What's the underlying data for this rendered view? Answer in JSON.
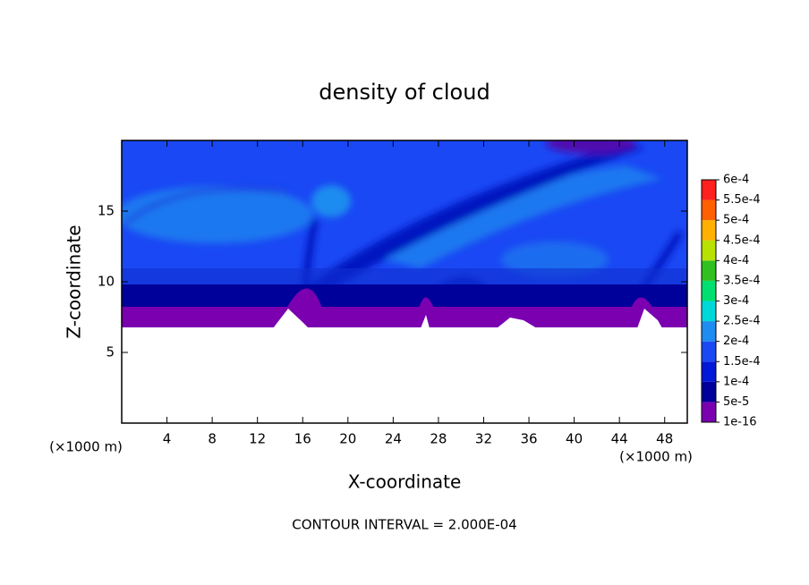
{
  "chart_data": {
    "type": "contour",
    "title": "density of cloud",
    "xlabel": "X-coordinate",
    "ylabel": "Z-coordinate",
    "y_unit": "(×1000 m)",
    "x_unit": "(×1000 m)",
    "annotation": "CONTOUR INTERVAL = 2.000E-04",
    "xlim": [
      0,
      50
    ],
    "xticks": [
      4,
      8,
      12,
      16,
      20,
      24,
      28,
      32,
      36,
      40,
      44,
      48
    ],
    "ylim": [
      0,
      20
    ],
    "yticks": [
      5,
      10,
      15
    ],
    "colorbar_ticks": [
      {
        "value": 1e-16,
        "label": "1e-16"
      },
      {
        "value": 5e-05,
        "label": "5e-5"
      },
      {
        "value": 0.0001,
        "label": "1e-4"
      },
      {
        "value": 0.00015,
        "label": "1.5e-4"
      },
      {
        "value": 0.0002,
        "label": "2e-4"
      },
      {
        "value": 0.00025,
        "label": "2.5e-4"
      },
      {
        "value": 0.0003,
        "label": "3e-4"
      },
      {
        "value": 0.00035,
        "label": "3.5e-4"
      },
      {
        "value": 0.0004,
        "label": "4e-4"
      },
      {
        "value": 0.00045,
        "label": "4.5e-4"
      },
      {
        "value": 0.0005,
        "label": "5e-4"
      },
      {
        "value": 0.00055,
        "label": "5.5e-4"
      },
      {
        "value": 0.0006,
        "label": "6e-4"
      }
    ],
    "colorbar_colors": [
      "#7a00b0",
      "#00009a",
      "#0018d8",
      "#1a48f4",
      "#1e8cf0",
      "#00d8d8",
      "#00e070",
      "#30c020",
      "#b8e000",
      "#ffb000",
      "#ff6000",
      "#ff2020"
    ]
  }
}
